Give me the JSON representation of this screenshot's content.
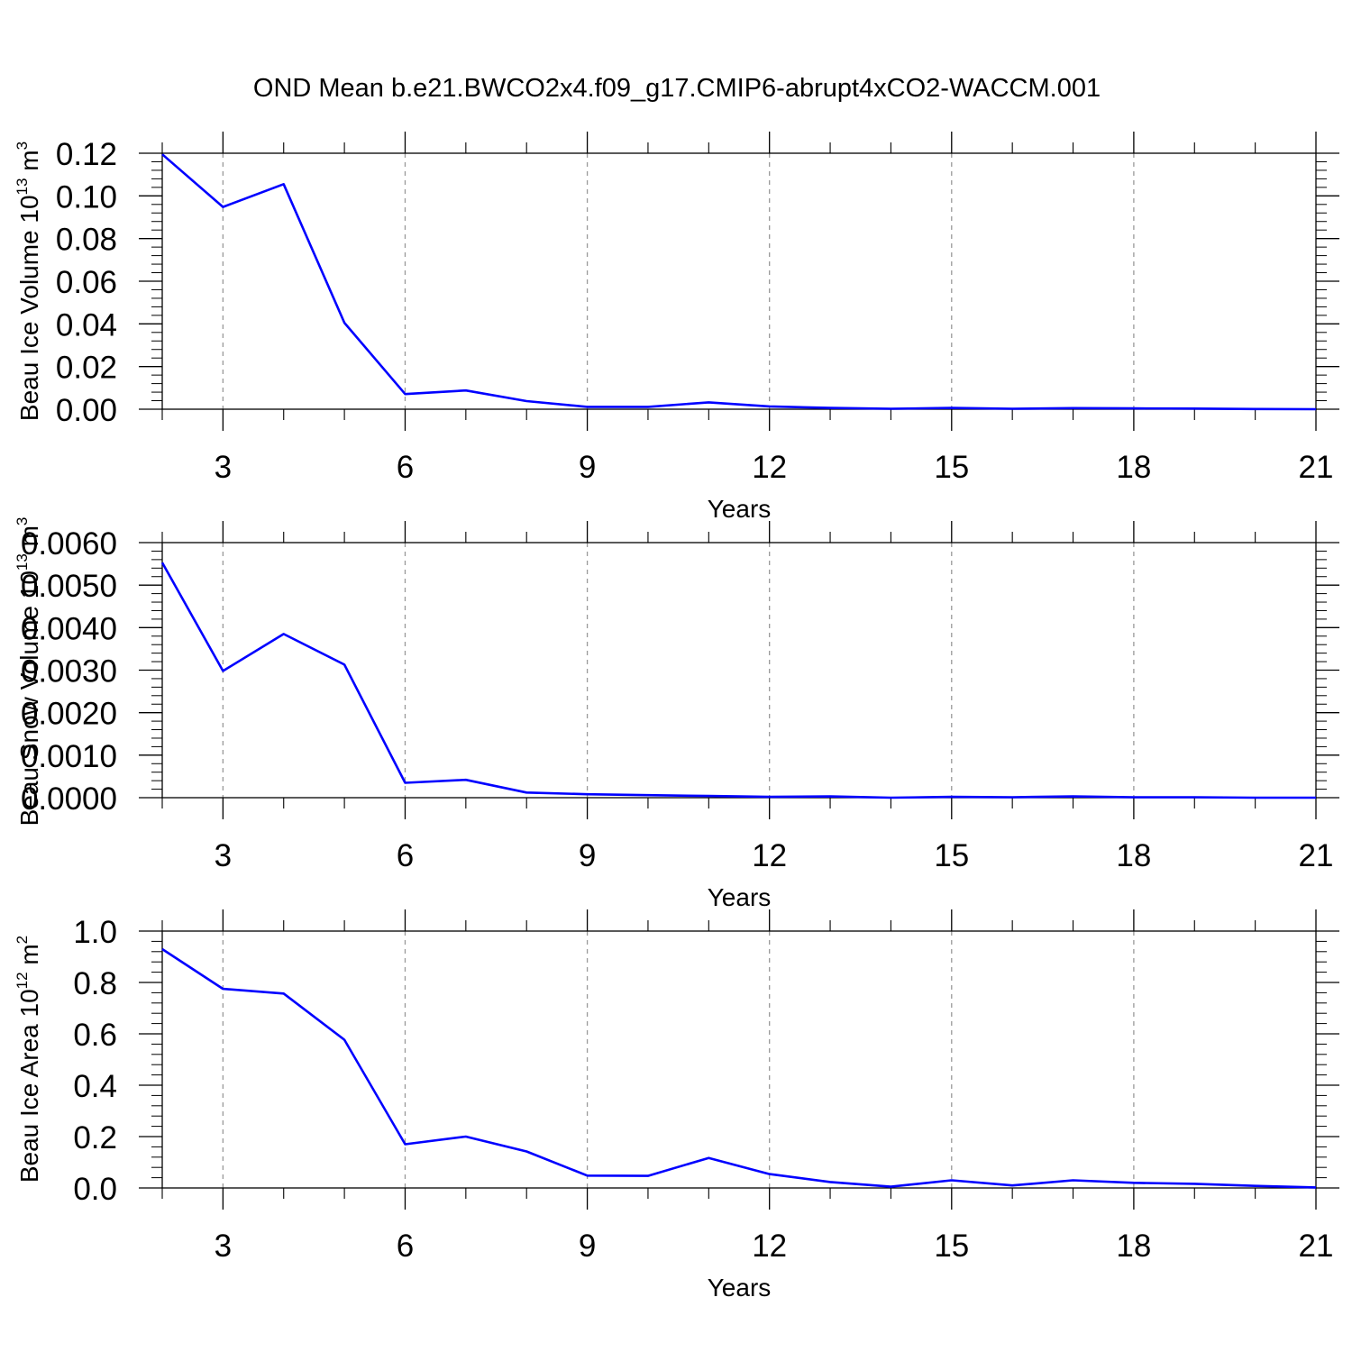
{
  "figure": {
    "title": "OND Mean b.e21.BWCO2x4.f09_g17.CMIP6-abrupt4xCO2-WACCM.001"
  },
  "chart_data": [
    {
      "type": "line",
      "ylabel": {
        "main": "Beau Ice Volume 10",
        "sup": "13",
        "unit": " m",
        "unit_sup": "3"
      },
      "xlabel": "Years",
      "xlim": [
        2,
        21
      ],
      "ylim": [
        0,
        0.12
      ],
      "x_ticks": [
        3,
        6,
        9,
        12,
        15,
        18,
        21
      ],
      "y_ticks": [
        "0.00",
        "0.02",
        "0.04",
        "0.06",
        "0.08",
        "0.10",
        "0.12"
      ],
      "y_tick_values": [
        0,
        0.02,
        0.04,
        0.06,
        0.08,
        0.1,
        0.12
      ],
      "x_minor_step": 1,
      "y_minor_step": 0.004,
      "grid": "vertical dashed at major x ticks",
      "line_color": "#0000ff",
      "x": [
        2,
        3,
        4,
        5,
        6,
        7,
        8,
        9,
        10,
        11,
        12,
        13,
        14,
        15,
        16,
        17,
        18,
        19,
        20,
        21
      ],
      "y": [
        0.1195,
        0.0948,
        0.1055,
        0.0405,
        0.0071,
        0.0088,
        0.0038,
        0.0011,
        0.0011,
        0.0032,
        0.0013,
        0.0006,
        0.0002,
        0.0006,
        0.0002,
        0.0005,
        0.0004,
        0.0003,
        0.0001,
        0.0
      ]
    },
    {
      "type": "line",
      "ylabel": {
        "main": "Beau Snow Volume 10",
        "sup": "13",
        "unit": " m",
        "unit_sup": "3"
      },
      "xlabel": "Years",
      "xlim": [
        2,
        21
      ],
      "ylim": [
        0,
        0.006
      ],
      "x_ticks": [
        3,
        6,
        9,
        12,
        15,
        18,
        21
      ],
      "y_ticks": [
        "0.0000",
        "0.0010",
        "0.0020",
        "0.0030",
        "0.0040",
        "0.0050",
        "0.0060"
      ],
      "y_tick_values": [
        0,
        0.001,
        0.002,
        0.003,
        0.004,
        0.005,
        0.006
      ],
      "x_minor_step": 1,
      "y_minor_step": 0.0002,
      "grid": "vertical dashed at major x ticks",
      "line_color": "#0000ff",
      "x": [
        2,
        3,
        4,
        5,
        6,
        7,
        8,
        9,
        10,
        11,
        12,
        13,
        14,
        15,
        16,
        17,
        18,
        19,
        20,
        21
      ],
      "y": [
        0.00553,
        0.00298,
        0.00385,
        0.00313,
        0.00035,
        0.00042,
        0.00012,
        8e-05,
        6e-05,
        4e-05,
        2e-05,
        3e-05,
        0.0,
        2e-05,
        1e-05,
        3e-05,
        1e-05,
        1e-05,
        0.0,
        0.0
      ]
    },
    {
      "type": "line",
      "ylabel": {
        "main": "Beau Ice Area 10",
        "sup": "12",
        "unit": " m",
        "unit_sup": "2"
      },
      "xlabel": "Years",
      "xlim": [
        2,
        21
      ],
      "ylim": [
        0,
        1.0
      ],
      "x_ticks": [
        3,
        6,
        9,
        12,
        15,
        18,
        21
      ],
      "y_ticks": [
        "0.0",
        "0.2",
        "0.4",
        "0.6",
        "0.8",
        "1.0"
      ],
      "y_tick_values": [
        0,
        0.2,
        0.4,
        0.6,
        0.8,
        1.0
      ],
      "x_minor_step": 1,
      "y_minor_step": 0.04,
      "grid": "vertical dashed at major x ticks",
      "line_color": "#0000ff",
      "x": [
        2,
        3,
        4,
        5,
        6,
        7,
        8,
        9,
        10,
        11,
        12,
        13,
        14,
        15,
        16,
        17,
        18,
        19,
        20,
        21
      ],
      "y": [
        0.93,
        0.775,
        0.757,
        0.577,
        0.17,
        0.2,
        0.142,
        0.048,
        0.047,
        0.117,
        0.054,
        0.023,
        0.005,
        0.03,
        0.01,
        0.03,
        0.02,
        0.016,
        0.008,
        0.002
      ]
    }
  ]
}
